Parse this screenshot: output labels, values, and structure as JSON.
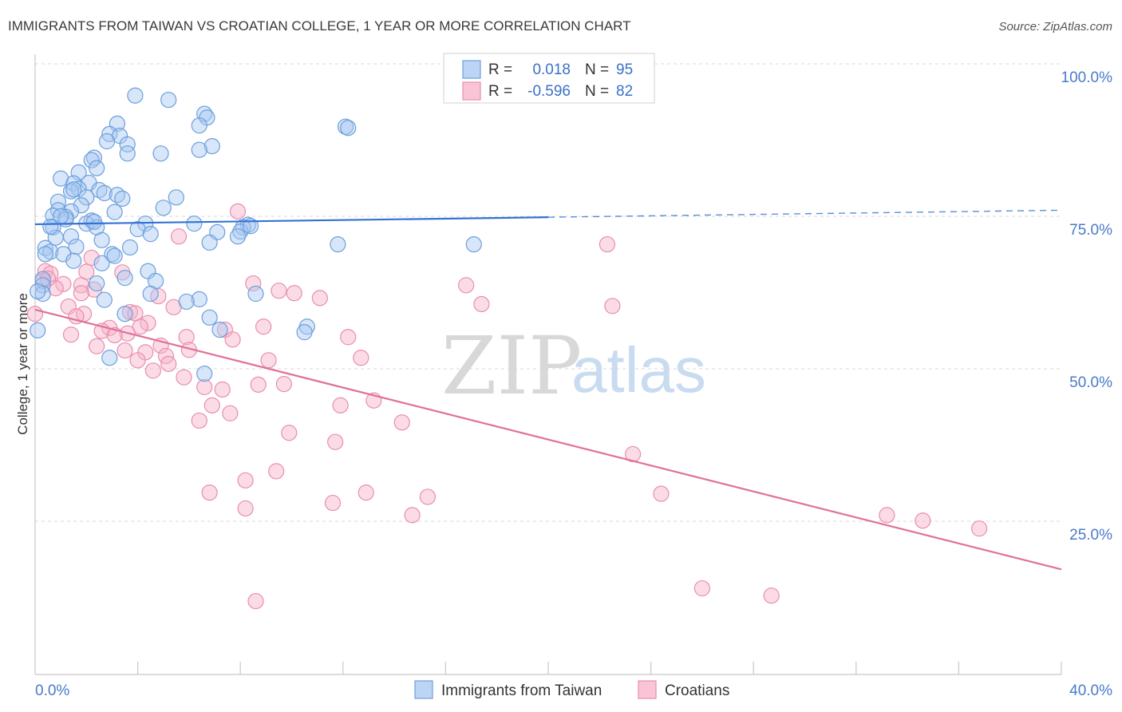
{
  "title": "IMMIGRANTS FROM TAIWAN VS CROATIAN COLLEGE, 1 YEAR OR MORE CORRELATION CHART",
  "source": "Source: ZipAtlas.com",
  "watermark": {
    "zip": "ZIP",
    "atlas": "atlas"
  },
  "stats_legend": [
    {
      "r_label": "R =",
      "r_value": "0.018",
      "n_label": "N =",
      "n_value": "95"
    },
    {
      "r_label": "R =",
      "r_value": "-0.596",
      "n_label": "N =",
      "n_value": "82"
    }
  ],
  "chart_data": {
    "type": "scatter",
    "title": "IMMIGRANTS FROM TAIWAN VS CROATIAN COLLEGE, 1 YEAR OR MORE CORRELATION CHART",
    "xlabel": "",
    "ylabel": "College, 1 year or more",
    "xlim": [
      0,
      40
    ],
    "ylim": [
      0,
      100
    ],
    "x_ticks": [
      0,
      4,
      8,
      12,
      16,
      20,
      24,
      28,
      32,
      36,
      40
    ],
    "x_tick_labels": {
      "min": "0.0%",
      "max": "40.0%"
    },
    "y_ticks": [
      {
        "value": 100,
        "label": "100.0%"
      },
      {
        "value": 75,
        "label": "75.0%"
      },
      {
        "value": 50,
        "label": "50.0%"
      },
      {
        "value": 25,
        "label": "25.0%"
      }
    ],
    "grid": true,
    "legend_position": "bottom-center",
    "series": [
      {
        "name": "Immigrants from Taiwan",
        "key": "taiwan",
        "fill_color": "#a7c7f2",
        "stroke_color": "#6d9fdc",
        "line_color": "#3373d1",
        "legend_fill": "#bcd5f5",
        "R": 0.018,
        "N": 95,
        "trend": {
          "start": [
            0,
            73.7
          ],
          "end": [
            40,
            76.0
          ],
          "solid_until": 20
        },
        "points": [
          [
            3.9,
            94.8
          ],
          [
            5.2,
            94.1
          ],
          [
            6.6,
            91.8
          ],
          [
            6.7,
            91.2
          ],
          [
            6.4,
            89.9
          ],
          [
            3.2,
            90.2
          ],
          [
            12.1,
            89.7
          ],
          [
            12.2,
            89.5
          ],
          [
            2.9,
            88.5
          ],
          [
            3.3,
            88.2
          ],
          [
            2.8,
            87.3
          ],
          [
            3.6,
            86.8
          ],
          [
            6.9,
            86.5
          ],
          [
            6.4,
            85.9
          ],
          [
            3.6,
            85.3
          ],
          [
            4.9,
            85.3
          ],
          [
            2.3,
            84.6
          ],
          [
            2.2,
            84.2
          ],
          [
            2.4,
            82.9
          ],
          [
            1.7,
            82.2
          ],
          [
            1.0,
            81.2
          ],
          [
            2.1,
            80.5
          ],
          [
            1.5,
            80.4
          ],
          [
            1.7,
            79.5
          ],
          [
            1.4,
            79.1
          ],
          [
            2.5,
            79.3
          ],
          [
            2.7,
            78.8
          ],
          [
            3.2,
            78.5
          ],
          [
            2.0,
            78.1
          ],
          [
            3.4,
            77.9
          ],
          [
            5.5,
            78.1
          ],
          [
            0.9,
            77.4
          ],
          [
            1.8,
            76.8
          ],
          [
            5.0,
            76.4
          ],
          [
            0.9,
            76.0
          ],
          [
            1.4,
            75.8
          ],
          [
            3.1,
            75.7
          ],
          [
            0.7,
            75.1
          ],
          [
            1.2,
            74.9
          ],
          [
            1.2,
            74.5
          ],
          [
            2.2,
            74.3
          ],
          [
            2.0,
            73.8
          ],
          [
            4.3,
            73.8
          ],
          [
            6.2,
            73.8
          ],
          [
            8.3,
            73.6
          ],
          [
            8.1,
            73.2
          ],
          [
            0.7,
            73.2
          ],
          [
            2.4,
            73.2
          ],
          [
            4.0,
            72.9
          ],
          [
            7.1,
            72.4
          ],
          [
            8.0,
            72.5
          ],
          [
            4.5,
            72.1
          ],
          [
            1.4,
            71.7
          ],
          [
            7.9,
            71.7
          ],
          [
            0.8,
            71.5
          ],
          [
            2.6,
            71.1
          ],
          [
            6.8,
            70.7
          ],
          [
            11.8,
            70.4
          ],
          [
            17.1,
            70.4
          ],
          [
            1.6,
            70.0
          ],
          [
            0.4,
            69.8
          ],
          [
            3.7,
            69.9
          ],
          [
            0.6,
            69.2
          ],
          [
            0.4,
            68.8
          ],
          [
            1.1,
            68.8
          ],
          [
            3.0,
            68.8
          ],
          [
            3.1,
            68.5
          ],
          [
            1.5,
            67.7
          ],
          [
            2.6,
            67.3
          ],
          [
            4.4,
            66.0
          ],
          [
            3.5,
            64.9
          ],
          [
            0.3,
            64.7
          ],
          [
            4.7,
            64.4
          ],
          [
            2.4,
            64.0
          ],
          [
            0.3,
            63.7
          ],
          [
            0.3,
            62.3
          ],
          [
            0.1,
            62.7
          ],
          [
            4.5,
            62.3
          ],
          [
            8.6,
            62.3
          ],
          [
            2.7,
            61.3
          ],
          [
            6.4,
            61.4
          ],
          [
            5.9,
            61.0
          ],
          [
            3.5,
            59.0
          ],
          [
            6.8,
            58.4
          ],
          [
            10.6,
            56.9
          ],
          [
            10.5,
            56.0
          ],
          [
            7.2,
            56.4
          ],
          [
            0.1,
            56.3
          ],
          [
            2.9,
            51.8
          ],
          [
            6.6,
            49.2
          ],
          [
            1.5,
            79.4
          ],
          [
            1.0,
            75.0
          ],
          [
            0.6,
            73.3
          ],
          [
            8.4,
            73.4
          ],
          [
            2.3,
            74.1
          ]
        ]
      },
      {
        "name": "Croatians",
        "key": "croatians",
        "fill_color": "#f7b2c8",
        "stroke_color": "#e98db0",
        "line_color": "#e0709a",
        "legend_fill": "#f9c5d6",
        "R": -0.596,
        "N": 82,
        "trend": {
          "start": [
            0,
            59.7
          ],
          "end": [
            40,
            17.1
          ],
          "solid_until": 40
        },
        "points": [
          [
            7.9,
            75.8
          ],
          [
            22.3,
            70.4
          ],
          [
            5.6,
            71.7
          ],
          [
            2.2,
            68.2
          ],
          [
            0.4,
            66.0
          ],
          [
            0.6,
            65.6
          ],
          [
            3.4,
            65.8
          ],
          [
            0.3,
            64.4
          ],
          [
            1.1,
            63.9
          ],
          [
            1.8,
            63.7
          ],
          [
            8.5,
            64.0
          ],
          [
            16.8,
            63.7
          ],
          [
            0.8,
            63.2
          ],
          [
            2.3,
            63.0
          ],
          [
            9.5,
            62.8
          ],
          [
            10.1,
            62.4
          ],
          [
            1.8,
            62.4
          ],
          [
            4.8,
            61.9
          ],
          [
            11.1,
            61.6
          ],
          [
            17.4,
            60.6
          ],
          [
            22.5,
            60.3
          ],
          [
            1.3,
            60.2
          ],
          [
            5.4,
            60.1
          ],
          [
            3.7,
            59.3
          ],
          [
            1.9,
            59.0
          ],
          [
            1.6,
            58.6
          ],
          [
            0.0,
            59.0
          ],
          [
            4.4,
            57.5
          ],
          [
            4.1,
            56.9
          ],
          [
            8.9,
            56.9
          ],
          [
            2.9,
            56.7
          ],
          [
            2.6,
            56.2
          ],
          [
            7.4,
            56.4
          ],
          [
            3.6,
            55.8
          ],
          [
            1.4,
            55.6
          ],
          [
            3.1,
            55.5
          ],
          [
            5.9,
            55.2
          ],
          [
            12.2,
            55.2
          ],
          [
            7.7,
            54.8
          ],
          [
            4.9,
            53.8
          ],
          [
            2.4,
            53.7
          ],
          [
            6.0,
            53.1
          ],
          [
            3.5,
            53.0
          ],
          [
            4.3,
            52.7
          ],
          [
            5.1,
            52.1
          ],
          [
            12.7,
            51.8
          ],
          [
            4.0,
            51.4
          ],
          [
            9.1,
            51.4
          ],
          [
            5.2,
            50.8
          ],
          [
            4.6,
            49.7
          ],
          [
            5.8,
            48.6
          ],
          [
            9.7,
            47.5
          ],
          [
            8.7,
            47.4
          ],
          [
            6.6,
            47.0
          ],
          [
            7.3,
            46.6
          ],
          [
            13.2,
            44.8
          ],
          [
            11.9,
            44.0
          ],
          [
            6.9,
            44.0
          ],
          [
            7.6,
            42.7
          ],
          [
            6.4,
            41.5
          ],
          [
            14.3,
            41.2
          ],
          [
            9.9,
            39.5
          ],
          [
            11.7,
            38.0
          ],
          [
            23.3,
            36.0
          ],
          [
            9.4,
            33.2
          ],
          [
            8.2,
            31.7
          ],
          [
            6.8,
            29.7
          ],
          [
            12.9,
            29.7
          ],
          [
            24.4,
            29.5
          ],
          [
            15.3,
            29.0
          ],
          [
            11.6,
            28.0
          ],
          [
            8.2,
            27.1
          ],
          [
            14.7,
            26.0
          ],
          [
            33.2,
            26.0
          ],
          [
            34.6,
            25.1
          ],
          [
            36.8,
            23.8
          ],
          [
            26.0,
            14.0
          ],
          [
            28.7,
            12.8
          ],
          [
            8.6,
            11.9
          ],
          [
            0.5,
            64.8
          ],
          [
            3.9,
            59.1
          ],
          [
            2.0,
            65.9
          ]
        ]
      }
    ]
  }
}
